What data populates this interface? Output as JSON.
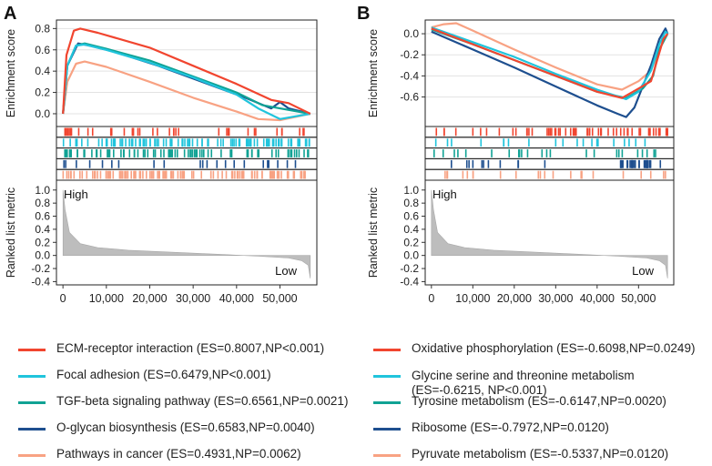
{
  "chart_data": [
    {
      "type": "line",
      "panel_label": "A",
      "title": "",
      "ylabel_top": "Enrichment score",
      "ylabel_bottom": "Ranked list metric",
      "es_ylim": [
        -0.12,
        0.88
      ],
      "es_yticks": [
        "0.8",
        "0.6",
        "0.4",
        "0.2",
        "0.0"
      ],
      "es_ytick_values": [
        0.8,
        0.6,
        0.4,
        0.2,
        0.0
      ],
      "metric_ylim": [
        -0.45,
        1.15
      ],
      "metric_yticks": [
        "1.0",
        "0.8",
        "0.6",
        "0.4",
        "0.2",
        "0.0",
        "-0.2",
        "-0.4"
      ],
      "metric_ytick_values": [
        1.0,
        0.8,
        0.6,
        0.4,
        0.2,
        0.0,
        -0.2,
        -0.4
      ],
      "xlim": [
        -1500,
        58500
      ],
      "xticks": [
        "0",
        "10,000",
        "20,000",
        "30,000",
        "40,000",
        "50,000"
      ],
      "xtick_values": [
        0,
        10000,
        20000,
        30000,
        40000,
        50000
      ],
      "high_label": "High",
      "low_label": "Low",
      "metric_curve": [
        [
          0,
          1.0
        ],
        [
          500,
          0.7
        ],
        [
          1500,
          0.35
        ],
        [
          4000,
          0.18
        ],
        [
          8000,
          0.12
        ],
        [
          15000,
          0.08
        ],
        [
          25000,
          0.05
        ],
        [
          35000,
          0.02
        ],
        [
          45000,
          -0.01
        ],
        [
          52000,
          -0.04
        ],
        [
          55000,
          -0.08
        ],
        [
          56500,
          -0.15
        ],
        [
          57000,
          -0.35
        ]
      ],
      "series": [
        {
          "name": "ECM-receptor interaction",
          "es": 0.8007,
          "np": "<0.001",
          "color": "#f1452f",
          "points": [
            [
              0,
              0
            ],
            [
              800,
              0.55
            ],
            [
              2500,
              0.78
            ],
            [
              4000,
              0.8
            ],
            [
              8000,
              0.76
            ],
            [
              20000,
              0.62
            ],
            [
              30000,
              0.45
            ],
            [
              40000,
              0.28
            ],
            [
              48000,
              0.13
            ],
            [
              52000,
              0.1
            ],
            [
              57000,
              0
            ]
          ],
          "hits_pattern": "top-dense",
          "hits_count": 40
        },
        {
          "name": "Focal adhesion",
          "es": 0.6479,
          "np": "<0.001",
          "color": "#20c4dc",
          "points": [
            [
              0,
              0
            ],
            [
              1000,
              0.45
            ],
            [
              3000,
              0.64
            ],
            [
              5000,
              0.65
            ],
            [
              10000,
              0.6
            ],
            [
              20000,
              0.48
            ],
            [
              30000,
              0.34
            ],
            [
              40000,
              0.18
            ],
            [
              45000,
              0.05
            ],
            [
              50000,
              -0.05
            ],
            [
              57000,
              0
            ]
          ],
          "hits_pattern": "dense",
          "hits_count": 95
        },
        {
          "name": "TGF-beta signaling pathway",
          "es": 0.6561,
          "np": "0.0021",
          "color": "#10a294",
          "points": [
            [
              0,
              0
            ],
            [
              1000,
              0.45
            ],
            [
              3000,
              0.64
            ],
            [
              5000,
              0.66
            ],
            [
              10000,
              0.61
            ],
            [
              20000,
              0.5
            ],
            [
              30000,
              0.35
            ],
            [
              40000,
              0.2
            ],
            [
              46000,
              0.08
            ],
            [
              50000,
              0.05
            ],
            [
              57000,
              0
            ]
          ],
          "hits_pattern": "dense",
          "hits_count": 80
        },
        {
          "name": "O-glycan biosynthesis",
          "es": 0.6583,
          "np": "0.0040",
          "color": "#1e4f8f",
          "points": [
            [
              0,
              0
            ],
            [
              1000,
              0.45
            ],
            [
              3500,
              0.66
            ],
            [
              6000,
              0.64
            ],
            [
              12000,
              0.58
            ],
            [
              22000,
              0.45
            ],
            [
              32000,
              0.3
            ],
            [
              42000,
              0.15
            ],
            [
              48000,
              0.05
            ],
            [
              50000,
              0.11
            ],
            [
              52000,
              0.05
            ],
            [
              57000,
              0
            ]
          ],
          "hits_pattern": "sparse",
          "hits_count": 22
        },
        {
          "name": "Pathways in cancer",
          "es": 0.4931,
          "np": "0.0062",
          "color": "#f8a283",
          "points": [
            [
              0,
              0
            ],
            [
              1000,
              0.3
            ],
            [
              3000,
              0.47
            ],
            [
              5000,
              0.49
            ],
            [
              10000,
              0.44
            ],
            [
              20000,
              0.3
            ],
            [
              30000,
              0.15
            ],
            [
              40000,
              0.02
            ],
            [
              45000,
              -0.05
            ],
            [
              50000,
              -0.06
            ],
            [
              57000,
              0
            ]
          ],
          "hits_pattern": "very-dense",
          "hits_count": 110
        }
      ]
    },
    {
      "type": "line",
      "panel_label": "B",
      "title": "",
      "ylabel_top": "Enrichment score",
      "ylabel_bottom": "Ranked list metric",
      "es_ylim": [
        -0.88,
        0.13
      ],
      "es_yticks": [
        "0.0",
        "-0.2",
        "-0.4",
        "-0.6"
      ],
      "es_ytick_values": [
        0.0,
        -0.2,
        -0.4,
        -0.6
      ],
      "metric_ylim": [
        -0.45,
        1.15
      ],
      "metric_yticks": [
        "1.0",
        "0.8",
        "0.6",
        "0.4",
        "0.2",
        "0.0",
        "-0.2",
        "-0.4"
      ],
      "metric_ytick_values": [
        1.0,
        0.8,
        0.6,
        0.4,
        0.2,
        0.0,
        -0.2,
        -0.4
      ],
      "xlim": [
        -1500,
        58500
      ],
      "xticks": [
        "0",
        "10,000",
        "20,000",
        "30,000",
        "40,000",
        "50,000"
      ],
      "xtick_values": [
        0,
        10000,
        20000,
        30000,
        40000,
        50000
      ],
      "high_label": "High",
      "low_label": "Low",
      "metric_curve": [
        [
          0,
          1.0
        ],
        [
          500,
          0.7
        ],
        [
          1500,
          0.35
        ],
        [
          4000,
          0.18
        ],
        [
          8000,
          0.12
        ],
        [
          15000,
          0.08
        ],
        [
          25000,
          0.05
        ],
        [
          35000,
          0.02
        ],
        [
          45000,
          -0.01
        ],
        [
          52000,
          -0.04
        ],
        [
          55000,
          -0.08
        ],
        [
          56500,
          -0.15
        ],
        [
          57000,
          -0.35
        ]
      ],
      "series": [
        {
          "name": "Oxidative phosphorylation",
          "es": -0.6098,
          "np": "0.0249",
          "color": "#f1452f",
          "points": [
            [
              0,
              0.05
            ],
            [
              10000,
              -0.1
            ],
            [
              20000,
              -0.25
            ],
            [
              30000,
              -0.4
            ],
            [
              40000,
              -0.55
            ],
            [
              46000,
              -0.61
            ],
            [
              50000,
              -0.52
            ],
            [
              53000,
              -0.45
            ],
            [
              54500,
              -0.25
            ],
            [
              56000,
              -0.05
            ],
            [
              57000,
              0
            ]
          ],
          "hits_pattern": "bottom-dense",
          "hits_count": 60
        },
        {
          "name": "Glycine serine and threonine metabolism",
          "es": -0.6215,
          "np": "<0.001",
          "color": "#20c4dc",
          "points": [
            [
              0,
              0.06
            ],
            [
              10000,
              -0.08
            ],
            [
              20000,
              -0.22
            ],
            [
              30000,
              -0.38
            ],
            [
              40000,
              -0.53
            ],
            [
              47000,
              -0.62
            ],
            [
              50000,
              -0.55
            ],
            [
              53000,
              -0.35
            ],
            [
              55000,
              -0.1
            ],
            [
              56500,
              0.02
            ],
            [
              57000,
              0
            ]
          ],
          "hits_pattern": "sparse",
          "hits_count": 20
        },
        {
          "name": "Tyrosine metabolism",
          "es": -0.6147,
          "np": "0.0020",
          "color": "#10a294",
          "points": [
            [
              0,
              0.04
            ],
            [
              10000,
              -0.1
            ],
            [
              20000,
              -0.25
            ],
            [
              30000,
              -0.4
            ],
            [
              40000,
              -0.55
            ],
            [
              47000,
              -0.61
            ],
            [
              51000,
              -0.52
            ],
            [
              53500,
              -0.4
            ],
            [
              55000,
              -0.15
            ],
            [
              57000,
              0
            ]
          ],
          "hits_pattern": "sparse",
          "hits_count": 24
        },
        {
          "name": "Ribosome",
          "es": -0.7972,
          "np": "0.0120",
          "color": "#1e4f8f",
          "points": [
            [
              0,
              0.02
            ],
            [
              10000,
              -0.15
            ],
            [
              20000,
              -0.32
            ],
            [
              30000,
              -0.5
            ],
            [
              40000,
              -0.68
            ],
            [
              45000,
              -0.76
            ],
            [
              47000,
              -0.79
            ],
            [
              49000,
              -0.7
            ],
            [
              51000,
              -0.5
            ],
            [
              53000,
              -0.3
            ],
            [
              55000,
              -0.05
            ],
            [
              56500,
              0.05
            ],
            [
              57000,
              0
            ]
          ],
          "hits_pattern": "bottom-cluster",
          "hits_count": 40
        },
        {
          "name": "Pyruvate metabolism",
          "es": -0.5337,
          "np": "0.0120",
          "color": "#f8a283",
          "points": [
            [
              0,
              0.06
            ],
            [
              3000,
              0.09
            ],
            [
              6000,
              0.1
            ],
            [
              10000,
              0.03
            ],
            [
              20000,
              -0.15
            ],
            [
              30000,
              -0.32
            ],
            [
              40000,
              -0.48
            ],
            [
              46000,
              -0.53
            ],
            [
              50000,
              -0.45
            ],
            [
              53000,
              -0.35
            ],
            [
              55000,
              -0.15
            ],
            [
              57000,
              0
            ]
          ],
          "hits_pattern": "sparse",
          "hits_count": 22
        }
      ]
    }
  ],
  "legend_left": [
    {
      "label": "ECM-receptor interaction (ES=0.8007,NP<0.001)",
      "color": "#f1452f"
    },
    {
      "label": "Focal adhesion (ES=0.6479,NP<0.001)",
      "color": "#20c4dc"
    },
    {
      "label": "TGF-beta signaling pathway (ES=0.6561,NP=0.0021)",
      "color": "#10a294"
    },
    {
      "label": "O-glycan biosynthesis (ES=0.6583,NP=0.0040)",
      "color": "#1e4f8f"
    },
    {
      "label": "Pathways in cancer (ES=0.4931,NP=0.0062)",
      "color": "#f8a283"
    }
  ],
  "legend_right": [
    {
      "label": "Oxidative phosphorylation (ES=-0.6098,NP=0.0249)",
      "color": "#f1452f"
    },
    {
      "label": "Glycine serine and threonine metabolism (ES=-0.6215, NP<0.001)",
      "color": "#20c4dc"
    },
    {
      "label": "Tyrosine metabolism (ES=-0.6147,NP=0.0020)",
      "color": "#10a294"
    },
    {
      "label": "Ribosome (ES=-0.7972,NP=0.0120)",
      "color": "#1e4f8f"
    },
    {
      "label": "Pyruvate metabolism (ES=-0.5337,NP=0.0120)",
      "color": "#f8a283"
    }
  ]
}
